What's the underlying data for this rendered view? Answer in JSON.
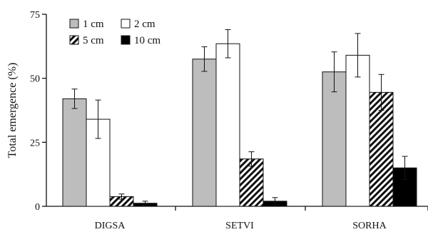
{
  "chart_data": {
    "type": "bar",
    "title": "",
    "xlabel": "",
    "ylabel": "Total emergence (%)",
    "ylim": [
      0,
      75
    ],
    "yticks": [
      0,
      25,
      50,
      75
    ],
    "categories": [
      "DIGSA",
      "SETVI",
      "SORHA"
    ],
    "grid": false,
    "legend_position": "top-left",
    "series": [
      {
        "name": "1 cm",
        "values": [
          42,
          57.5,
          52.5
        ],
        "errors": [
          3.8,
          4.8,
          7.8
        ],
        "fill": "#bdbdbd",
        "pattern": "solid"
      },
      {
        "name": "2 cm",
        "values": [
          34,
          63.5,
          59
        ],
        "errors": [
          7.5,
          5.5,
          8.5
        ],
        "fill": "#ffffff",
        "pattern": "solid"
      },
      {
        "name": "5 cm",
        "values": [
          3.8,
          18.5,
          44.5
        ],
        "errors": [
          1.0,
          2.8,
          7.0
        ],
        "fill": "#ffffff",
        "pattern": "hatch"
      },
      {
        "name": "10 cm",
        "values": [
          1.2,
          2.0,
          15
        ],
        "errors": [
          0.8,
          1.4,
          4.5
        ],
        "fill": "#000000",
        "pattern": "solid"
      }
    ]
  }
}
